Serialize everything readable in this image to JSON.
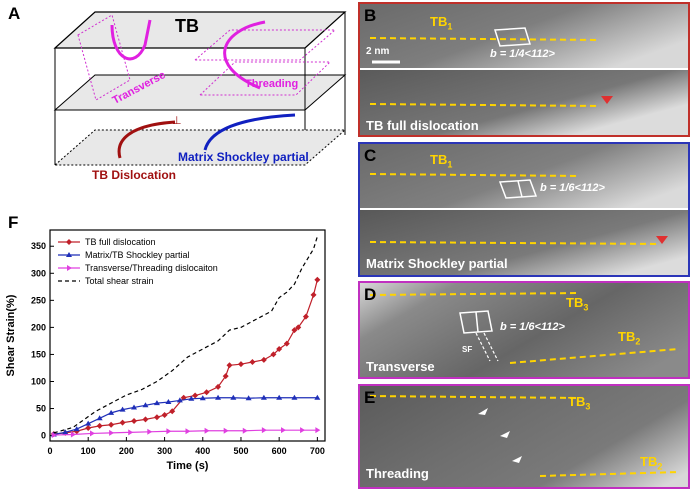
{
  "figure": {
    "panels": {
      "A": {
        "label": "A",
        "title": "TB",
        "transverse": "Transverse",
        "threading": "Threading",
        "tb_dislocation": "TB Dislocation",
        "matrix_partial": "Matrix Shockley partial"
      },
      "B": {
        "label": "B",
        "tb": "TB",
        "tb_sub": "1",
        "scale": "2 nm",
        "burgers": "b = 1/4<112>",
        "caption": "TB full dislocation",
        "border_color": "#c0302a"
      },
      "C": {
        "label": "C",
        "tb": "TB",
        "tb_sub": "1",
        "burgers": "b = 1/6<112>",
        "caption": "Matrix Shockley  partial",
        "border_color": "#2b35b8"
      },
      "D": {
        "label": "D",
        "tb3": "TB",
        "tb3_sub": "3",
        "tb2": "TB",
        "tb2_sub": "2",
        "burgers": "b = 1/6<112>",
        "sf": "SF",
        "caption": "Transverse",
        "border_color": "#c030c0"
      },
      "E": {
        "label": "E",
        "tb3": "TB",
        "tb3_sub": "3",
        "tb2": "TB",
        "tb2_sub": "2",
        "caption": "Threading",
        "border_color": "#c030c0"
      },
      "F": {
        "label": "F"
      }
    }
  },
  "chart_data": {
    "type": "line",
    "xlabel": "Time (s)",
    "ylabel": "Shear Strain(%)",
    "xlim": [
      0,
      720
    ],
    "ylim": [
      -10,
      380
    ],
    "xticks": [
      0,
      100,
      200,
      300,
      400,
      500,
      600,
      700
    ],
    "yticks": [
      0,
      50,
      100,
      150,
      200,
      250,
      300,
      350
    ],
    "legend_position": "top-left",
    "series": [
      {
        "name": "TB full dislocation",
        "color": "#c0202a",
        "marker": "diamond",
        "dash": "",
        "points": [
          [
            10,
            3
          ],
          [
            40,
            5
          ],
          [
            70,
            8
          ],
          [
            100,
            14
          ],
          [
            130,
            18
          ],
          [
            160,
            20
          ],
          [
            190,
            24
          ],
          [
            220,
            27
          ],
          [
            250,
            30
          ],
          [
            280,
            34
          ],
          [
            300,
            38
          ],
          [
            320,
            45
          ],
          [
            350,
            70
          ],
          [
            380,
            74
          ],
          [
            410,
            80
          ],
          [
            440,
            90
          ],
          [
            460,
            110
          ],
          [
            470,
            130
          ],
          [
            500,
            132
          ],
          [
            530,
            136
          ],
          [
            560,
            140
          ],
          [
            585,
            150
          ],
          [
            600,
            160
          ],
          [
            620,
            170
          ],
          [
            640,
            195
          ],
          [
            650,
            200
          ],
          [
            670,
            220
          ],
          [
            690,
            260
          ],
          [
            700,
            288
          ]
        ]
      },
      {
        "name": "Matrix/TB Shockley partial",
        "color": "#1f2fb8",
        "marker": "triangle",
        "dash": "",
        "points": [
          [
            10,
            2
          ],
          [
            40,
            6
          ],
          [
            70,
            12
          ],
          [
            100,
            22
          ],
          [
            130,
            32
          ],
          [
            160,
            42
          ],
          [
            190,
            48
          ],
          [
            220,
            52
          ],
          [
            250,
            56
          ],
          [
            280,
            60
          ],
          [
            310,
            62
          ],
          [
            340,
            65
          ],
          [
            370,
            68
          ],
          [
            400,
            69
          ],
          [
            440,
            70
          ],
          [
            480,
            70
          ],
          [
            520,
            69
          ],
          [
            560,
            70
          ],
          [
            600,
            70
          ],
          [
            640,
            70
          ],
          [
            700,
            70
          ]
        ]
      },
      {
        "name": "Transverse/Threading dislocaiton",
        "color": "#e040e0",
        "marker": "triangle-right",
        "dash": "",
        "points": [
          [
            10,
            1
          ],
          [
            60,
            2
          ],
          [
            110,
            4
          ],
          [
            160,
            5
          ],
          [
            210,
            6
          ],
          [
            260,
            7
          ],
          [
            310,
            8
          ],
          [
            360,
            8
          ],
          [
            410,
            9
          ],
          [
            460,
            9
          ],
          [
            510,
            9
          ],
          [
            560,
            10
          ],
          [
            610,
            10
          ],
          [
            660,
            10
          ],
          [
            700,
            10
          ]
        ]
      },
      {
        "name": "Total shear strain",
        "color": "#000000",
        "marker": "",
        "dash": "4,3",
        "points": [
          [
            10,
            5
          ],
          [
            60,
            15
          ],
          [
            90,
            30
          ],
          [
            120,
            45
          ],
          [
            160,
            60
          ],
          [
            200,
            75
          ],
          [
            240,
            85
          ],
          [
            280,
            100
          ],
          [
            320,
            120
          ],
          [
            360,
            145
          ],
          [
            400,
            160
          ],
          [
            440,
            175
          ],
          [
            470,
            195
          ],
          [
            500,
            200
          ],
          [
            540,
            215
          ],
          [
            580,
            230
          ],
          [
            600,
            255
          ],
          [
            620,
            265
          ],
          [
            640,
            280
          ],
          [
            660,
            310
          ],
          [
            690,
            345
          ],
          [
            700,
            368
          ]
        ]
      }
    ]
  }
}
